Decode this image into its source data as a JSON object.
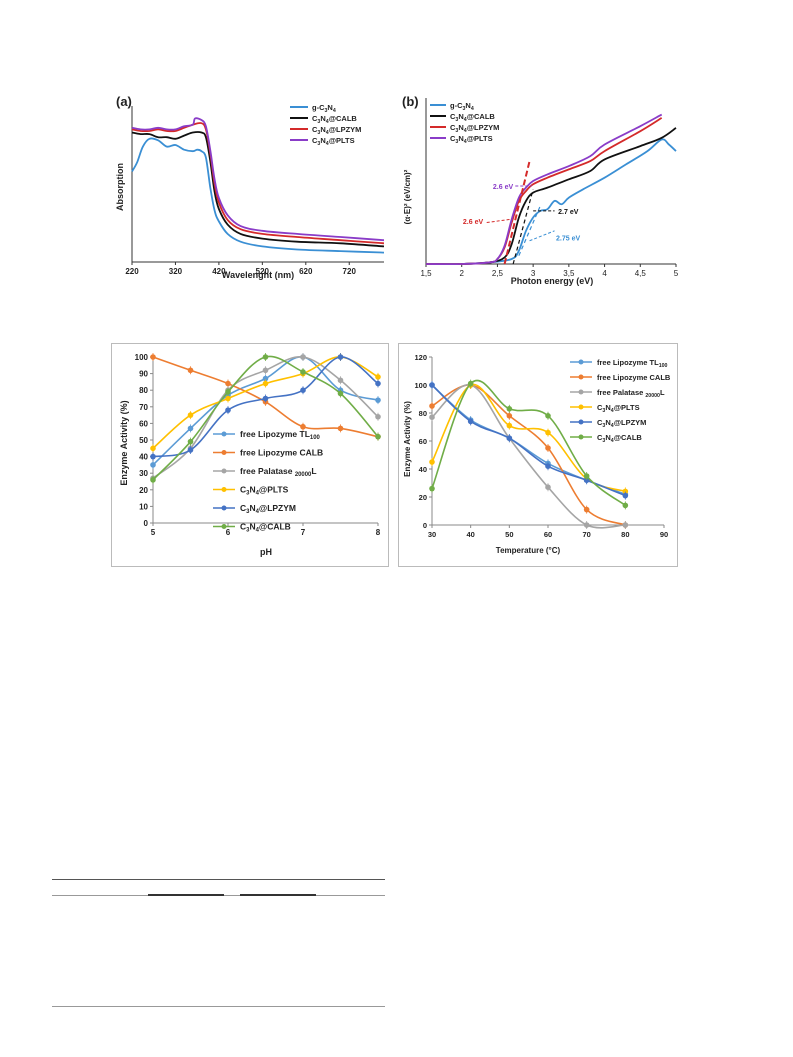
{
  "colors": {
    "blue": "#3a8fd4",
    "black": "#111111",
    "red": "#d42a2a",
    "purple": "#8a3cc8",
    "lightblue": "#5b9bd5",
    "orange": "#ed7d31",
    "gray": "#a5a5a5",
    "yellow": "#ffc000",
    "darkblue": "#4472c4",
    "green": "#70ad47"
  },
  "chart_data": [
    {
      "type": "line",
      "panel": "(a)",
      "xlabel": "Wavelenght (nm)",
      "ylabel": "Absorption",
      "xlim": [
        220,
        800
      ],
      "ylim": [
        0,
        1
      ],
      "xticks": [
        220,
        320,
        420,
        520,
        620,
        720
      ],
      "legend": "top-right",
      "series": [
        {
          "name": "g-C3N4",
          "color_key": "blue",
          "x": [
            220,
            232,
            245,
            260,
            280,
            300,
            320,
            340,
            360,
            370,
            380,
            390,
            400,
            410,
            420,
            440,
            470,
            520,
            600,
            700,
            800
          ],
          "y": [
            0.58,
            0.64,
            0.74,
            0.79,
            0.78,
            0.74,
            0.75,
            0.72,
            0.71,
            0.72,
            0.71,
            0.67,
            0.48,
            0.33,
            0.26,
            0.18,
            0.13,
            0.1,
            0.08,
            0.07,
            0.06
          ]
        },
        {
          "name": "C3N4@CALB",
          "color_key": "black",
          "x": [
            220,
            240,
            260,
            280,
            300,
            320,
            340,
            360,
            380,
            390,
            400,
            410,
            420,
            440,
            470,
            520,
            600,
            700,
            800
          ],
          "y": [
            0.83,
            0.82,
            0.82,
            0.8,
            0.8,
            0.79,
            0.81,
            0.83,
            0.83,
            0.8,
            0.65,
            0.45,
            0.34,
            0.24,
            0.18,
            0.15,
            0.13,
            0.12,
            0.1
          ]
        },
        {
          "name": "C3N4@LPZYM",
          "color_key": "red",
          "x": [
            220,
            240,
            260,
            280,
            300,
            320,
            340,
            360,
            380,
            390,
            400,
            410,
            420,
            440,
            470,
            520,
            600,
            700,
            800
          ],
          "y": [
            0.85,
            0.84,
            0.84,
            0.85,
            0.84,
            0.84,
            0.86,
            0.88,
            0.89,
            0.85,
            0.7,
            0.5,
            0.38,
            0.27,
            0.21,
            0.18,
            0.16,
            0.14,
            0.12
          ]
        },
        {
          "name": "C3N4@PLTS",
          "color_key": "purple",
          "x": [
            220,
            240,
            260,
            280,
            300,
            320,
            340,
            360,
            365,
            380,
            390,
            400,
            410,
            420,
            440,
            470,
            520,
            600,
            700,
            800
          ],
          "y": [
            0.86,
            0.85,
            0.85,
            0.86,
            0.85,
            0.85,
            0.87,
            0.88,
            0.92,
            0.91,
            0.87,
            0.72,
            0.53,
            0.41,
            0.3,
            0.23,
            0.2,
            0.18,
            0.16,
            0.14
          ]
        }
      ]
    },
    {
      "type": "line",
      "panel": "(b)",
      "xlabel": "Photon energy (eV)",
      "ylabel": "(α·E)² (eV/cm)²",
      "xlim": [
        1.5,
        5
      ],
      "ylim": [
        0,
        1
      ],
      "xticks": [
        "1,5",
        "2",
        "2,5",
        "3",
        "3,5",
        "4",
        "4,5",
        "5"
      ],
      "legend": "top-left",
      "series": [
        {
          "name": "g-C3N4",
          "color_key": "blue",
          "x": [
            1.5,
            2.0,
            2.4,
            2.7,
            2.8,
            2.9,
            3.0,
            3.1,
            3.2,
            3.3,
            3.4,
            3.5,
            3.7,
            4.0,
            4.3,
            4.6,
            4.8,
            4.9,
            5.0
          ],
          "y": [
            0.0,
            0.0,
            0.01,
            0.03,
            0.08,
            0.2,
            0.28,
            0.32,
            0.33,
            0.38,
            0.36,
            0.4,
            0.45,
            0.52,
            0.6,
            0.68,
            0.75,
            0.72,
            0.68
          ]
        },
        {
          "name": "C3N4@CALB",
          "color_key": "black",
          "x": [
            1.5,
            2.0,
            2.4,
            2.6,
            2.7,
            2.8,
            2.9,
            3.0,
            3.2,
            3.5,
            3.8,
            4.0,
            4.5,
            4.8,
            5.0
          ],
          "y": [
            0.0,
            0.0,
            0.01,
            0.04,
            0.12,
            0.28,
            0.38,
            0.43,
            0.46,
            0.51,
            0.56,
            0.63,
            0.71,
            0.76,
            0.82
          ]
        },
        {
          "name": "C3N4@LPZYM",
          "color_key": "red",
          "x": [
            1.5,
            2.0,
            2.4,
            2.5,
            2.6,
            2.7,
            2.8,
            2.9,
            3.0,
            3.2,
            3.5,
            3.8,
            4.0,
            4.5,
            4.8
          ],
          "y": [
            0.0,
            0.0,
            0.01,
            0.03,
            0.1,
            0.25,
            0.38,
            0.44,
            0.48,
            0.52,
            0.57,
            0.62,
            0.68,
            0.8,
            0.88
          ]
        },
        {
          "name": "C3N4@PLTS",
          "color_key": "purple",
          "x": [
            1.5,
            2.0,
            2.4,
            2.5,
            2.6,
            2.7,
            2.8,
            2.9,
            3.0,
            3.2,
            3.5,
            3.8,
            4.0,
            4.5,
            4.8
          ],
          "y": [
            0.0,
            0.0,
            0.01,
            0.03,
            0.11,
            0.27,
            0.4,
            0.46,
            0.5,
            0.54,
            0.59,
            0.65,
            0.72,
            0.83,
            0.9
          ]
        }
      ],
      "annotations": [
        {
          "text": "2.6 eV",
          "x": 2.9,
          "y": 0.47,
          "color_key": "purple"
        },
        {
          "text": "2.7 eV",
          "x": 3.35,
          "y": 0.32,
          "color_key": "black"
        },
        {
          "text": "2.6 eV",
          "x": 2.2,
          "y": 0.27,
          "color_key": "red"
        },
        {
          "text": "2.75 eV",
          "x": 3.35,
          "y": 0.17,
          "color_key": "blue"
        }
      ]
    },
    {
      "type": "line",
      "xlabel": "pH",
      "ylabel": "Enzyme Activity (%)",
      "xlim": [
        5,
        8
      ],
      "ylim": [
        0,
        100
      ],
      "xticks": [
        5,
        6,
        7,
        8
      ],
      "yticks": [
        0,
        10,
        20,
        30,
        40,
        50,
        60,
        70,
        80,
        90,
        100
      ],
      "legend": "bottom-center",
      "x": [
        5,
        5.5,
        6,
        6.5,
        7,
        7.5,
        8
      ],
      "series": [
        {
          "name": "free Lipozyme TL100",
          "color_key": "lightblue",
          "values": [
            35,
            57,
            77,
            87,
            100,
            80,
            74
          ]
        },
        {
          "name": "free Lipozyme CALB",
          "color_key": "orange",
          "values": [
            100,
            92,
            84,
            73,
            58,
            57,
            52
          ]
        },
        {
          "name": "free Palatase 20000L",
          "color_key": "gray",
          "values": [
            27,
            45,
            80,
            92,
            100,
            86,
            64
          ]
        },
        {
          "name": "C3N4@PLTS",
          "color_key": "yellow",
          "values": [
            45,
            65,
            75,
            84,
            90,
            100,
            88
          ]
        },
        {
          "name": "C3N4@LPZYM",
          "color_key": "darkblue",
          "values": [
            40,
            44,
            68,
            75,
            80,
            100,
            84
          ]
        },
        {
          "name": "C3N4@CALB",
          "color_key": "green",
          "values": [
            26,
            49,
            79,
            100,
            91,
            78,
            52
          ]
        }
      ]
    },
    {
      "type": "line",
      "xlabel": "Temperature (°C)",
      "ylabel": "Enzyme Activity (%)",
      "xlim": [
        30,
        90
      ],
      "ylim": [
        0,
        120
      ],
      "xticks": [
        30,
        40,
        50,
        60,
        70,
        80,
        90
      ],
      "yticks": [
        0,
        20,
        40,
        60,
        80,
        100,
        120
      ],
      "legend": "top-right",
      "x": [
        30,
        40,
        50,
        60,
        70,
        80
      ],
      "series": [
        {
          "name": "free Lipozyme TL100",
          "color_key": "lightblue",
          "values": [
            100,
            75,
            62,
            44,
            32,
            22
          ]
        },
        {
          "name": "free Lipozyme CALB",
          "color_key": "orange",
          "values": [
            85,
            100,
            78,
            55,
            11,
            0
          ]
        },
        {
          "name": "free Palatase 20000L",
          "color_key": "gray",
          "values": [
            77,
            100,
            62,
            27,
            0,
            0
          ]
        },
        {
          "name": "C3N4@PLTS",
          "color_key": "yellow",
          "values": [
            45,
            100,
            71,
            66,
            33,
            24
          ]
        },
        {
          "name": "C3N4@LPZYM",
          "color_key": "darkblue",
          "values": [
            100,
            74,
            62,
            42,
            32,
            21
          ]
        },
        {
          "name": "C3N4@CALB",
          "color_key": "green",
          "values": [
            26,
            101,
            83,
            78,
            35,
            14
          ]
        }
      ]
    }
  ]
}
